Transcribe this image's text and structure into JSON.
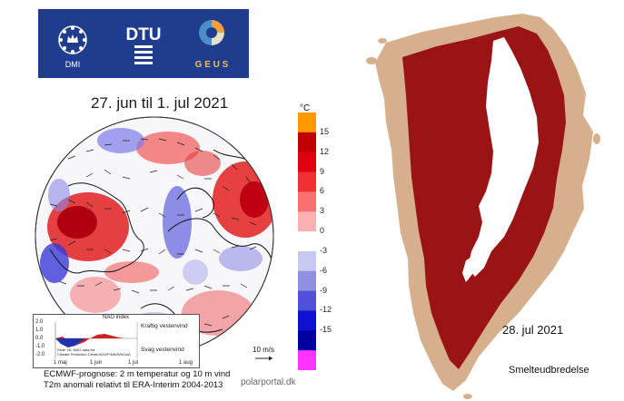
{
  "logos": {
    "dmi": "DMI",
    "dtu": "DTU",
    "geus": "G E U S"
  },
  "title": "27. jun til 1. jul 2021",
  "colorbar": {
    "unit": "°C",
    "ticks": [
      "15",
      "12",
      "9",
      "6",
      "3",
      "0",
      "-3",
      "-6",
      "-9",
      "-12",
      "-15"
    ],
    "colors": [
      "#ff9900",
      "#c00000",
      "#e00010",
      "#f03030",
      "#f87070",
      "#fcb0b0",
      "#ffffff",
      "#c8c8f0",
      "#9090e0",
      "#5050d8",
      "#1010d0",
      "#0000a0",
      "#ff33ff"
    ]
  },
  "nao": {
    "title": "NAO index",
    "strong": "Kraftig vestenvind",
    "weak": "Svag vestenvind",
    "y_ticks": [
      "2.0",
      "1.0",
      "0.0",
      "-1.0",
      "-2.0"
    ],
    "x_ticks": [
      "1 maj",
      "1 jun",
      "1 jul",
      "1 aug"
    ],
    "source_line1": "Kilde: NL-NAO-data,fra",
    "source_line2": "Climate Prediction Center/NCEP/NWS/NOAA"
  },
  "wind_scale": "10 m/s",
  "forecast_line1": "ECMWF-prognose: 2 m temperatur og 10 m vind",
  "forecast_line2": "T2m anomali relativt til ERA-Interim 2004-2013",
  "portal": "polarportal.dk",
  "map_date": "28. jul 2021",
  "map_subtitle": "Smelteudbredelse",
  "colors": {
    "banner": "#1f3c8f",
    "melt": "#9a1416",
    "land": "#d6b08c",
    "ice": "#ffffff"
  }
}
